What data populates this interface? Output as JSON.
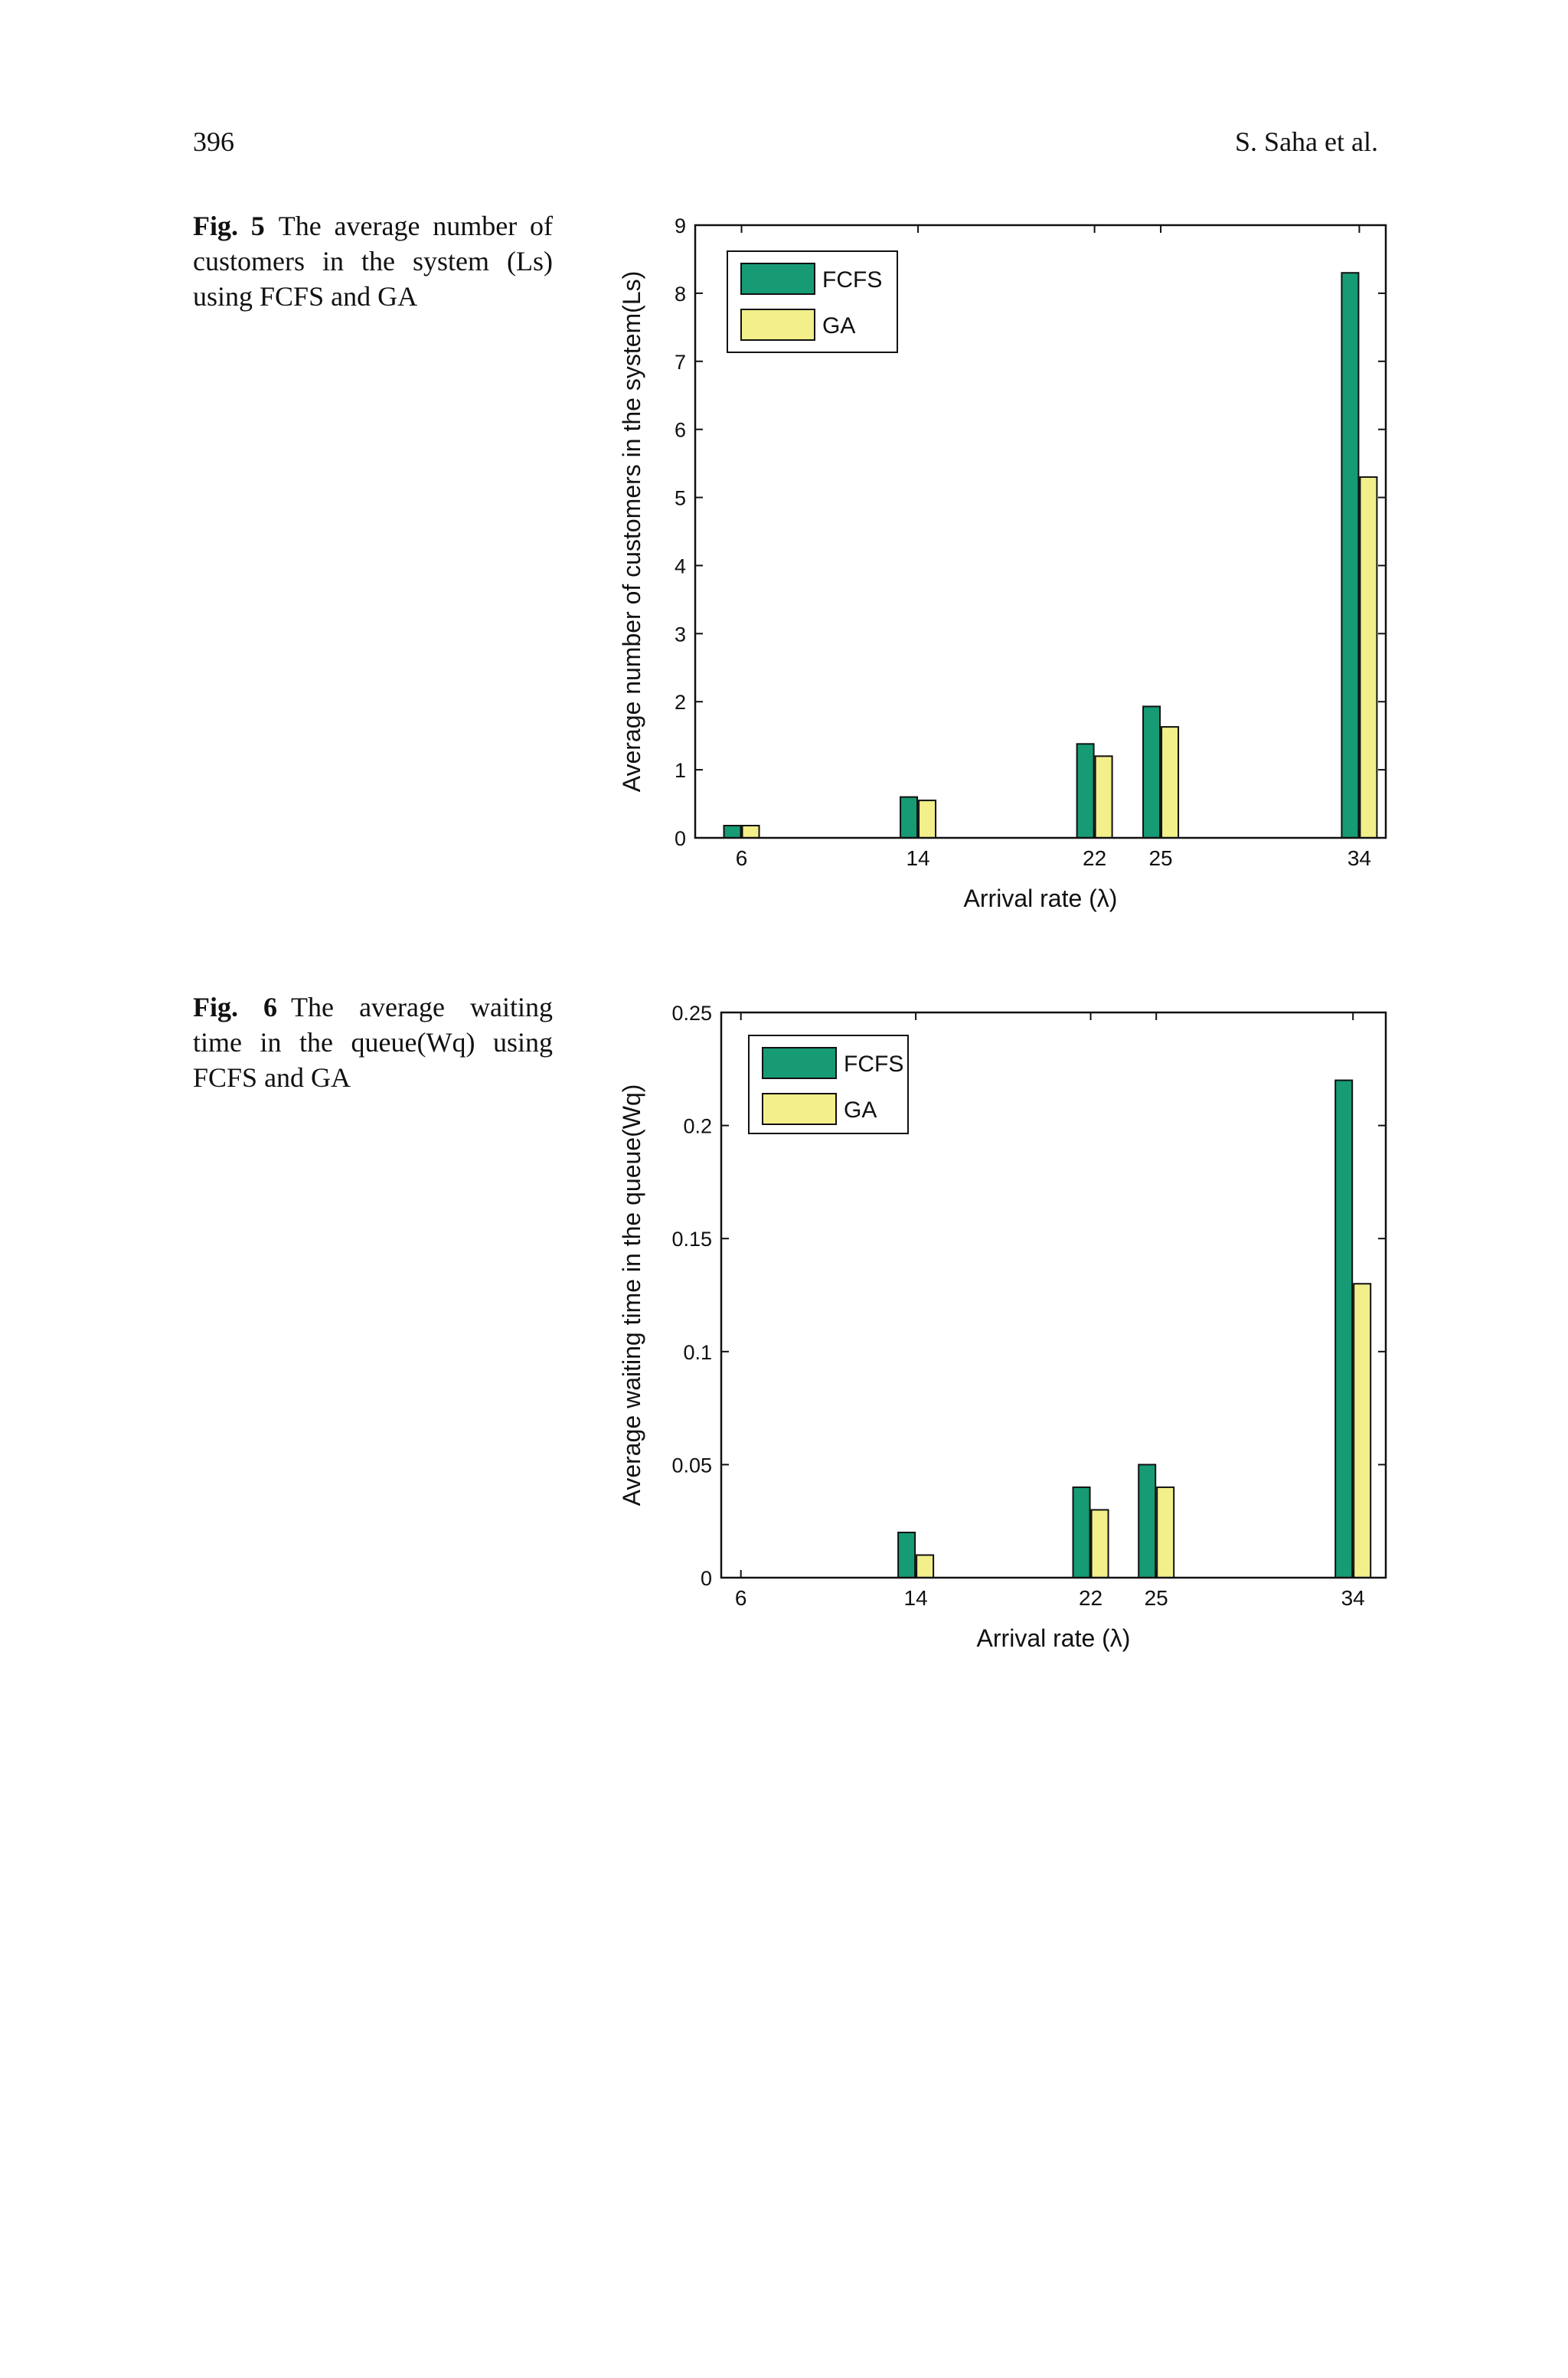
{
  "header": {
    "page_number": "396",
    "running_head": "S. Saha et al."
  },
  "figures": [
    {
      "label": "Fig. 5",
      "caption": "The average number of customers in the system (Ls) using FCFS and GA"
    },
    {
      "label": "Fig. 6",
      "caption": "The average waiting time in the queue(Wq) using FCFS and GA"
    }
  ],
  "colors": {
    "fcfs": "#169b75",
    "ga": "#f3ef8a"
  },
  "chart_data": [
    {
      "type": "bar",
      "x": [
        6,
        14,
        22,
        25,
        34
      ],
      "categories": [
        "6",
        "14",
        "22",
        "25",
        "34"
      ],
      "series": [
        {
          "name": "FCFS",
          "values": [
            0.18,
            0.6,
            1.38,
            1.93,
            8.3
          ]
        },
        {
          "name": "GA",
          "values": [
            0.18,
            0.55,
            1.2,
            1.63,
            5.3
          ]
        }
      ],
      "xlabel": "Arrival rate (λ)",
      "ylabel": "Average number of customers in the system(Ls)",
      "ylim": [
        0,
        9
      ],
      "yticks": [
        0,
        1,
        2,
        3,
        4,
        5,
        6,
        7,
        8,
        9
      ],
      "ytick_labels": [
        "0",
        "1",
        "2",
        "3",
        "4",
        "5",
        "6",
        "7",
        "8",
        "9"
      ],
      "grid": false,
      "legend": "top-left"
    },
    {
      "type": "bar",
      "x": [
        6,
        14,
        22,
        25,
        34
      ],
      "categories": [
        "6",
        "14",
        "22",
        "25",
        "34"
      ],
      "series": [
        {
          "name": "FCFS",
          "values": [
            0,
            0.02,
            0.04,
            0.05,
            0.22
          ]
        },
        {
          "name": "GA",
          "values": [
            0,
            0.01,
            0.03,
            0.04,
            0.13
          ]
        }
      ],
      "xlabel": "Arrival rate (λ)",
      "ylabel": "Average waiting time in the queue(Wq)",
      "ylim": [
        0,
        0.25
      ],
      "yticks": [
        0,
        0.05,
        0.1,
        0.15,
        0.2,
        0.25
      ],
      "ytick_labels": [
        "0",
        "0.05",
        "0.1",
        "0.15",
        "0.2",
        "0.25"
      ],
      "grid": false,
      "legend": "top-left"
    }
  ]
}
